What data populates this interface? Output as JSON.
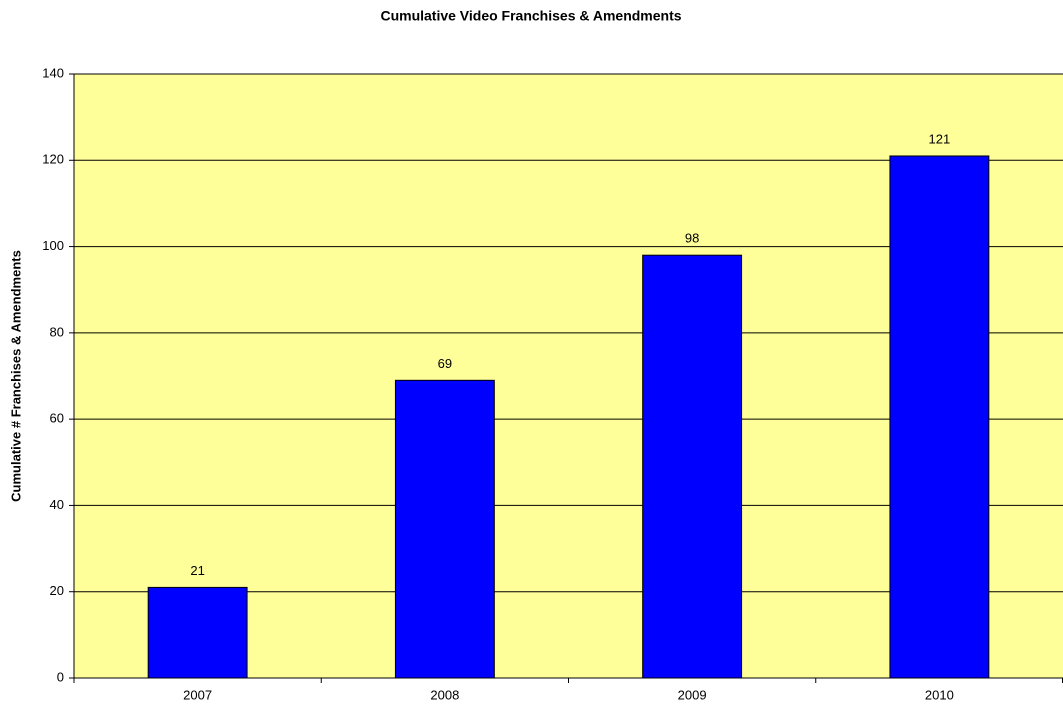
{
  "chart_data": {
    "type": "bar",
    "title": "Cumulative Video Franchises & Amendments",
    "ylabel": "Cumulative # Franchises & Amendments",
    "categories": [
      "2007",
      "2008",
      "2009",
      "2010"
    ],
    "values": [
      21,
      69,
      98,
      121
    ],
    "color": "#0000ff",
    "background": "#ffff99",
    "ylim": [
      0,
      140
    ],
    "yticks": [
      0,
      20,
      40,
      60,
      80,
      100,
      120,
      140
    ],
    "grid": true,
    "data_labels": true
  }
}
